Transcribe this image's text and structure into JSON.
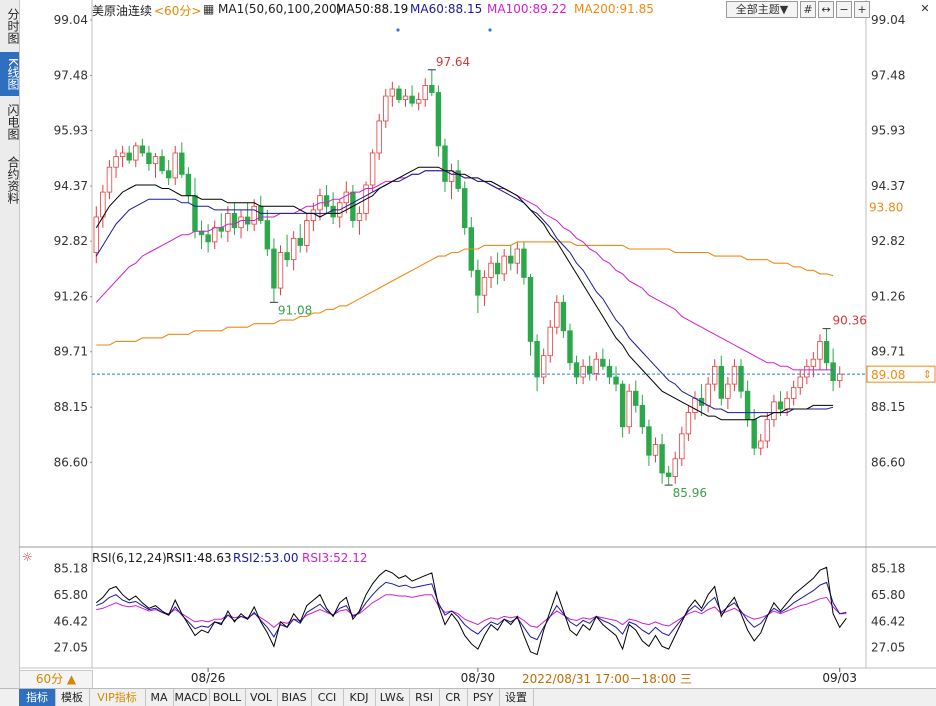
{
  "sidebar": {
    "tabs": [
      {
        "label": "分时图",
        "active": false
      },
      {
        "label": "K线图",
        "active": true
      },
      {
        "label": "闪电图",
        "active": false
      },
      {
        "label": "合约资料",
        "active": false
      }
    ]
  },
  "header": {
    "instrument": "美原油连续",
    "period": "<60分>",
    "ma_label": "MA1(50,60,100,200)",
    "ma50": "MA50:88.19",
    "ma60": "MA60:88.15",
    "ma100": "MA100:89.22",
    "ma200": "MA200:91.85",
    "theme_button": "全部主题▼"
  },
  "toolbar": {
    "icons": [
      "grid-icon",
      "expand-icon",
      "zoom-out-icon",
      "zoom-in-icon"
    ],
    "close_icon": "close-icon"
  },
  "rsi_header": {
    "label": "RSI(6,12,24)",
    "rsi1": "RSI1:48.63",
    "rsi2": "RSI2:53.00",
    "rsi3": "RSI3:52.12"
  },
  "footer": {
    "period_button": "60分 ▲",
    "date_tag": "2022/08/31 17:00－18:00 三",
    "tabs": [
      "指标",
      "模板",
      "VIP指标",
      "MA",
      "MACD",
      "BOLL",
      "VOL",
      "BIAS",
      "CCI",
      "KDJ",
      "LW&",
      "RSI",
      "CR",
      "PSY",
      "设置"
    ]
  },
  "colors": {
    "up": "#e83e3e",
    "down": "#2aa84a",
    "ma50": "#000000",
    "ma60": "#1a1aa0",
    "ma100": "#d020d0",
    "ma200": "#f08a10",
    "current": "#2a7fd8",
    "rsi1": "#000000",
    "rsi2": "#1a1aa0",
    "rsi3": "#d020d0"
  },
  "chart_data": {
    "type": "candlestick",
    "price_axis_ticks": [
      "99.04",
      "97.48",
      "95.93",
      "94.37",
      "92.82",
      "91.26",
      "89.71",
      "88.15",
      "86.60"
    ],
    "y_range": [
      85.4,
      99.04
    ],
    "x_ticks": [
      "08/26",
      "08/30",
      "09/03"
    ],
    "annotations": {
      "high": "97.64",
      "low_left": "91.08",
      "low": "85.96",
      "high_right": "90.36"
    },
    "current_price": "89.08",
    "ma200_tag": "93.80",
    "candles": [
      [
        92.5,
        93.8,
        92.2,
        93.5
      ],
      [
        93.5,
        94.4,
        93.2,
        94.2
      ],
      [
        94.2,
        95.1,
        94.0,
        94.9
      ],
      [
        94.9,
        95.4,
        94.6,
        95.2
      ],
      [
        95.2,
        95.5,
        94.9,
        95.3
      ],
      [
        95.3,
        95.5,
        95.0,
        95.1
      ],
      [
        95.1,
        95.6,
        94.9,
        95.5
      ],
      [
        95.5,
        95.7,
        95.2,
        95.3
      ],
      [
        95.3,
        95.5,
        94.8,
        95.0
      ],
      [
        95.0,
        95.3,
        94.6,
        95.2
      ],
      [
        95.2,
        95.4,
        94.7,
        94.8
      ],
      [
        94.8,
        95.1,
        94.4,
        94.6
      ],
      [
        94.6,
        95.5,
        94.4,
        95.3
      ],
      [
        95.3,
        95.6,
        94.6,
        94.7
      ],
      [
        94.7,
        94.9,
        93.9,
        94.1
      ],
      [
        94.1,
        94.6,
        92.9,
        93.1
      ],
      [
        93.1,
        93.4,
        92.6,
        93.0
      ],
      [
        93.0,
        93.3,
        92.5,
        92.8
      ],
      [
        92.8,
        93.4,
        92.6,
        93.2
      ],
      [
        93.2,
        93.6,
        92.9,
        93.1
      ],
      [
        93.1,
        93.8,
        92.8,
        93.6
      ],
      [
        93.6,
        93.9,
        93.0,
        93.2
      ],
      [
        93.2,
        93.7,
        92.9,
        93.5
      ],
      [
        93.5,
        93.9,
        93.1,
        93.3
      ],
      [
        93.3,
        94.0,
        93.1,
        93.8
      ],
      [
        93.8,
        94.1,
        93.3,
        93.4
      ],
      [
        93.4,
        93.7,
        92.4,
        92.6
      ],
      [
        92.6,
        92.9,
        91.1,
        91.5
      ],
      [
        91.5,
        92.7,
        91.3,
        92.5
      ],
      [
        92.5,
        93.0,
        92.1,
        92.3
      ],
      [
        92.3,
        93.1,
        92.0,
        92.9
      ],
      [
        92.9,
        93.3,
        92.5,
        92.7
      ],
      [
        92.7,
        93.6,
        92.5,
        93.4
      ],
      [
        93.4,
        93.9,
        93.1,
        93.7
      ],
      [
        93.7,
        94.3,
        93.4,
        94.1
      ],
      [
        94.1,
        94.4,
        93.6,
        93.8
      ],
      [
        93.8,
        94.2,
        93.3,
        93.5
      ],
      [
        93.5,
        94.0,
        93.2,
        93.9
      ],
      [
        93.9,
        94.5,
        93.6,
        94.2
      ],
      [
        94.2,
        94.4,
        93.2,
        93.4
      ],
      [
        93.4,
        93.8,
        93.0,
        93.6
      ],
      [
        93.6,
        94.5,
        93.4,
        94.4
      ],
      [
        94.4,
        95.4,
        94.2,
        95.3
      ],
      [
        95.3,
        96.4,
        95.1,
        96.2
      ],
      [
        96.2,
        97.1,
        96.0,
        96.9
      ],
      [
        96.9,
        97.3,
        96.6,
        97.1
      ],
      [
        97.1,
        97.2,
        96.7,
        96.8
      ],
      [
        96.8,
        97.1,
        96.6,
        96.9
      ],
      [
        96.9,
        97.2,
        96.6,
        96.7
      ],
      [
        96.7,
        97.0,
        96.5,
        96.8
      ],
      [
        96.8,
        97.4,
        96.6,
        97.2
      ],
      [
        97.2,
        97.64,
        96.9,
        97.0
      ],
      [
        97.0,
        97.2,
        95.2,
        95.5
      ],
      [
        95.5,
        95.7,
        94.2,
        94.5
      ],
      [
        94.5,
        95.0,
        94.0,
        94.8
      ],
      [
        94.8,
        95.1,
        94.2,
        94.3
      ],
      [
        94.3,
        94.5,
        93.0,
        93.2
      ],
      [
        93.2,
        93.5,
        91.8,
        92.0
      ],
      [
        92.0,
        92.3,
        90.8,
        91.3
      ],
      [
        91.3,
        92.0,
        91.0,
        91.8
      ],
      [
        91.8,
        92.4,
        91.5,
        92.2
      ],
      [
        92.2,
        92.5,
        91.6,
        91.9
      ],
      [
        91.9,
        92.6,
        91.7,
        92.4
      ],
      [
        92.4,
        92.7,
        92.0,
        92.2
      ],
      [
        92.2,
        92.8,
        91.9,
        92.6
      ],
      [
        92.6,
        92.8,
        91.6,
        91.8
      ],
      [
        91.8,
        91.9,
        89.6,
        90.0
      ],
      [
        90.0,
        90.2,
        88.6,
        89.0
      ],
      [
        89.0,
        89.8,
        88.8,
        89.6
      ],
      [
        89.6,
        90.6,
        89.4,
        90.4
      ],
      [
        90.4,
        91.3,
        90.2,
        91.1
      ],
      [
        91.1,
        91.3,
        90.1,
        90.3
      ],
      [
        90.3,
        90.5,
        89.2,
        89.4
      ],
      [
        89.4,
        89.6,
        88.8,
        89.0
      ],
      [
        89.0,
        89.5,
        88.8,
        89.3
      ],
      [
        89.3,
        89.6,
        88.9,
        89.1
      ],
      [
        89.1,
        89.7,
        88.9,
        89.5
      ],
      [
        89.5,
        89.8,
        89.2,
        89.3
      ],
      [
        89.3,
        89.5,
        88.8,
        89.0
      ],
      [
        89.0,
        89.3,
        88.6,
        88.8
      ],
      [
        88.8,
        88.9,
        87.3,
        87.6
      ],
      [
        87.6,
        88.8,
        87.4,
        88.6
      ],
      [
        88.6,
        88.9,
        88.0,
        88.2
      ],
      [
        88.2,
        88.5,
        87.4,
        87.6
      ],
      [
        87.6,
        87.8,
        86.5,
        86.8
      ],
      [
        86.8,
        87.3,
        86.6,
        87.1
      ],
      [
        87.1,
        87.4,
        86.0,
        86.3
      ],
      [
        86.3,
        86.5,
        85.96,
        86.2
      ],
      [
        86.2,
        86.9,
        86.0,
        86.7
      ],
      [
        86.7,
        87.6,
        86.5,
        87.4
      ],
      [
        87.4,
        88.2,
        87.2,
        88.0
      ],
      [
        88.0,
        88.6,
        87.8,
        88.4
      ],
      [
        88.4,
        88.8,
        87.9,
        88.2
      ],
      [
        88.2,
        89.0,
        88.0,
        88.8
      ],
      [
        88.8,
        89.5,
        88.6,
        89.3
      ],
      [
        89.3,
        89.6,
        88.2,
        88.4
      ],
      [
        88.4,
        89.0,
        88.1,
        88.8
      ],
      [
        88.8,
        89.5,
        88.6,
        89.3
      ],
      [
        89.3,
        89.5,
        88.4,
        88.6
      ],
      [
        88.6,
        88.9,
        87.6,
        87.8
      ],
      [
        87.8,
        88.1,
        86.8,
        87.0
      ],
      [
        87.0,
        87.4,
        86.8,
        87.2
      ],
      [
        87.2,
        88.0,
        87.0,
        87.8
      ],
      [
        87.8,
        88.5,
        87.6,
        88.3
      ],
      [
        88.3,
        88.6,
        87.9,
        88.1
      ],
      [
        88.1,
        88.6,
        87.9,
        88.4
      ],
      [
        88.4,
        88.9,
        88.2,
        88.7
      ],
      [
        88.7,
        89.2,
        88.5,
        89.0
      ],
      [
        89.0,
        89.5,
        88.8,
        89.3
      ],
      [
        89.3,
        89.7,
        89.0,
        89.5
      ],
      [
        89.5,
        90.2,
        89.2,
        90.0
      ],
      [
        90.0,
        90.36,
        89.2,
        89.4
      ],
      [
        89.4,
        89.8,
        88.6,
        88.9
      ],
      [
        88.9,
        89.3,
        88.7,
        89.08
      ]
    ],
    "ma50": [
      93.2,
      93.5,
      93.8,
      94.0,
      94.2,
      94.3,
      94.4,
      94.4,
      94.4,
      94.4,
      94.3,
      94.3,
      94.2,
      94.1,
      94.1,
      94.1,
      94.0,
      94.0,
      94.0,
      94.0,
      93.9,
      93.9,
      93.9,
      93.9,
      93.9,
      93.8,
      93.8,
      93.8,
      93.8,
      93.8,
      93.8,
      93.7,
      93.6,
      93.6,
      93.5,
      93.6,
      93.6,
      93.6,
      93.7,
      93.8,
      93.9,
      94.0,
      94.1,
      94.3,
      94.4,
      94.5,
      94.6,
      94.7,
      94.8,
      94.9,
      94.9,
      94.9,
      94.9,
      94.8,
      94.8,
      94.7,
      94.7,
      94.6,
      94.6,
      94.5,
      94.5,
      94.4,
      94.3,
      94.2,
      94.1,
      93.9,
      93.7,
      93.5,
      93.3,
      93.0,
      92.8,
      92.5,
      92.2,
      91.9,
      91.6,
      91.3,
      91.0,
      90.7,
      90.4,
      90.1,
      89.9,
      89.6,
      89.4,
      89.2,
      89.0,
      88.8,
      88.6,
      88.5,
      88.4,
      88.3,
      88.2,
      88.1,
      88.0,
      87.9,
      87.9,
      87.8,
      87.8,
      87.8,
      87.8,
      87.8,
      87.8,
      87.9,
      87.9,
      88.0,
      88.0,
      88.1,
      88.1,
      88.1,
      88.1,
      88.2,
      88.2,
      88.2,
      88.2
    ],
    "ma60": [
      92.4,
      92.7,
      93.0,
      93.3,
      93.5,
      93.7,
      93.8,
      93.9,
      94.0,
      94.0,
      94.0,
      94.0,
      94.0,
      93.9,
      93.9,
      93.8,
      93.8,
      93.8,
      93.7,
      93.7,
      93.7,
      93.7,
      93.7,
      93.7,
      93.7,
      93.6,
      93.6,
      93.6,
      93.6,
      93.6,
      93.6,
      93.6,
      93.6,
      93.6,
      93.6,
      93.6,
      93.7,
      93.7,
      93.8,
      93.9,
      94.0,
      94.1,
      94.2,
      94.3,
      94.4,
      94.5,
      94.5,
      94.6,
      94.7,
      94.7,
      94.8,
      94.8,
      94.8,
      94.8,
      94.7,
      94.7,
      94.6,
      94.6,
      94.5,
      94.5,
      94.4,
      94.3,
      94.2,
      94.1,
      94.0,
      93.9,
      93.7,
      93.6,
      93.4,
      93.2,
      92.9,
      92.7,
      92.5,
      92.2,
      92.0,
      91.7,
      91.4,
      91.2,
      90.9,
      90.6,
      90.4,
      90.1,
      89.9,
      89.7,
      89.5,
      89.3,
      89.1,
      88.9,
      88.8,
      88.6,
      88.5,
      88.4,
      88.3,
      88.2,
      88.1,
      88.1,
      88.0,
      88.0,
      88.0,
      88.0,
      88.0,
      88.0,
      88.0,
      88.0,
      88.0,
      88.0,
      88.1,
      88.1,
      88.1,
      88.1,
      88.1,
      88.1,
      88.15
    ],
    "ma100": [
      91.1,
      91.3,
      91.5,
      91.7,
      91.9,
      92.1,
      92.2,
      92.4,
      92.5,
      92.6,
      92.7,
      92.8,
      92.9,
      93.0,
      93.0,
      93.1,
      93.1,
      93.1,
      93.2,
      93.2,
      93.3,
      93.3,
      93.4,
      93.4,
      93.4,
      93.5,
      93.5,
      93.5,
      93.6,
      93.6,
      93.6,
      93.7,
      93.8,
      93.8,
      93.9,
      93.9,
      94.0,
      94.0,
      94.1,
      94.2,
      94.2,
      94.3,
      94.3,
      94.4,
      94.5,
      94.5,
      94.6,
      94.6,
      94.7,
      94.7,
      94.8,
      94.8,
      94.8,
      94.8,
      94.7,
      94.7,
      94.6,
      94.6,
      94.5,
      94.5,
      94.4,
      94.3,
      94.3,
      94.2,
      94.1,
      94.0,
      93.9,
      93.8,
      93.6,
      93.5,
      93.4,
      93.2,
      93.1,
      92.9,
      92.8,
      92.6,
      92.5,
      92.3,
      92.2,
      92.0,
      91.9,
      91.7,
      91.6,
      91.5,
      91.3,
      91.2,
      91.1,
      91.0,
      90.9,
      90.7,
      90.6,
      90.5,
      90.4,
      90.3,
      90.2,
      90.1,
      90.0,
      89.9,
      89.8,
      89.7,
      89.6,
      89.5,
      89.4,
      89.4,
      89.3,
      89.3,
      89.2,
      89.2,
      89.2,
      89.2,
      89.2,
      89.2,
      89.2
    ],
    "ma200": [
      89.9,
      89.9,
      89.9,
      90.0,
      90.0,
      90.0,
      90.0,
      90.1,
      90.1,
      90.1,
      90.1,
      90.2,
      90.2,
      90.2,
      90.2,
      90.3,
      90.3,
      90.3,
      90.3,
      90.3,
      90.4,
      90.4,
      90.4,
      90.4,
      90.5,
      90.5,
      90.5,
      90.5,
      90.6,
      90.6,
      90.6,
      90.7,
      90.7,
      90.8,
      90.8,
      90.9,
      90.9,
      91.0,
      91.0,
      91.1,
      91.2,
      91.3,
      91.4,
      91.5,
      91.6,
      91.7,
      91.8,
      91.9,
      92.0,
      92.1,
      92.2,
      92.3,
      92.4,
      92.4,
      92.5,
      92.5,
      92.6,
      92.6,
      92.6,
      92.7,
      92.7,
      92.7,
      92.7,
      92.7,
      92.8,
      92.8,
      92.8,
      92.8,
      92.8,
      92.8,
      92.8,
      92.8,
      92.8,
      92.7,
      92.7,
      92.7,
      92.7,
      92.7,
      92.7,
      92.7,
      92.7,
      92.6,
      92.6,
      92.6,
      92.6,
      92.6,
      92.6,
      92.6,
      92.5,
      92.5,
      92.5,
      92.5,
      92.5,
      92.5,
      92.4,
      92.4,
      92.4,
      92.4,
      92.4,
      92.3,
      92.3,
      92.3,
      92.3,
      92.2,
      92.2,
      92.2,
      92.1,
      92.1,
      92.0,
      92.0,
      91.9,
      91.9,
      91.85
    ],
    "rsi_axis_ticks": [
      "85.18",
      "65.80",
      "46.42",
      "27.05"
    ],
    "rsi_range": [
      18,
      90
    ],
    "rsi1": [
      60,
      64,
      70,
      72,
      66,
      62,
      65,
      60,
      56,
      58,
      54,
      51,
      62,
      52,
      44,
      36,
      40,
      38,
      46,
      44,
      54,
      46,
      52,
      48,
      57,
      46,
      38,
      28,
      46,
      42,
      52,
      46,
      58,
      62,
      66,
      56,
      50,
      60,
      64,
      48,
      54,
      66,
      74,
      80,
      84,
      82,
      78,
      80,
      76,
      78,
      80,
      82,
      58,
      44,
      52,
      46,
      36,
      30,
      26,
      36,
      44,
      40,
      48,
      44,
      50,
      36,
      24,
      22,
      40,
      54,
      68,
      54,
      40,
      36,
      44,
      40,
      50,
      44,
      40,
      36,
      26,
      44,
      40,
      32,
      28,
      36,
      28,
      26,
      36,
      46,
      56,
      62,
      56,
      66,
      72,
      50,
      58,
      64,
      52,
      40,
      32,
      38,
      50,
      60,
      54,
      60,
      66,
      70,
      74,
      78,
      84,
      86,
      52,
      42,
      48.63
    ],
    "rsi2": [
      58,
      60,
      64,
      66,
      62,
      60,
      61,
      58,
      55,
      56,
      53,
      51,
      57,
      51,
      46,
      41,
      43,
      42,
      46,
      45,
      51,
      47,
      50,
      48,
      53,
      47,
      42,
      35,
      44,
      42,
      48,
      45,
      53,
      56,
      59,
      54,
      51,
      56,
      58,
      50,
      53,
      60,
      66,
      71,
      75,
      74,
      72,
      73,
      71,
      72,
      73,
      74,
      60,
      51,
      54,
      50,
      44,
      40,
      37,
      42,
      46,
      44,
      48,
      46,
      49,
      42,
      35,
      33,
      42,
      50,
      58,
      52,
      46,
      43,
      47,
      45,
      50,
      47,
      45,
      42,
      37,
      46,
      44,
      40,
      37,
      42,
      38,
      36,
      42,
      48,
      54,
      58,
      54,
      60,
      64,
      53,
      57,
      60,
      54,
      47,
      42,
      45,
      51,
      56,
      53,
      56,
      60,
      63,
      66,
      69,
      73,
      75,
      60,
      52,
      53.0
    ],
    "rsi3": [
      55,
      56,
      58,
      60,
      58,
      57,
      58,
      56,
      54,
      55,
      53,
      52,
      55,
      52,
      49,
      46,
      47,
      46,
      48,
      48,
      51,
      49,
      50,
      49,
      52,
      49,
      46,
      42,
      46,
      45,
      48,
      47,
      51,
      53,
      55,
      53,
      51,
      54,
      55,
      51,
      52,
      56,
      60,
      63,
      66,
      66,
      65,
      65,
      64,
      65,
      66,
      66,
      58,
      53,
      54,
      52,
      48,
      46,
      44,
      47,
      49,
      48,
      50,
      49,
      50,
      47,
      43,
      42,
      46,
      50,
      54,
      51,
      48,
      47,
      49,
      48,
      50,
      49,
      48,
      47,
      44,
      48,
      47,
      45,
      44,
      46,
      44,
      43,
      46,
      49,
      52,
      54,
      52,
      55,
      57,
      52,
      54,
      56,
      53,
      50,
      48,
      49,
      51,
      54,
      52,
      54,
      56,
      58,
      59,
      61,
      63,
      64,
      57,
      52,
      52.12
    ]
  }
}
